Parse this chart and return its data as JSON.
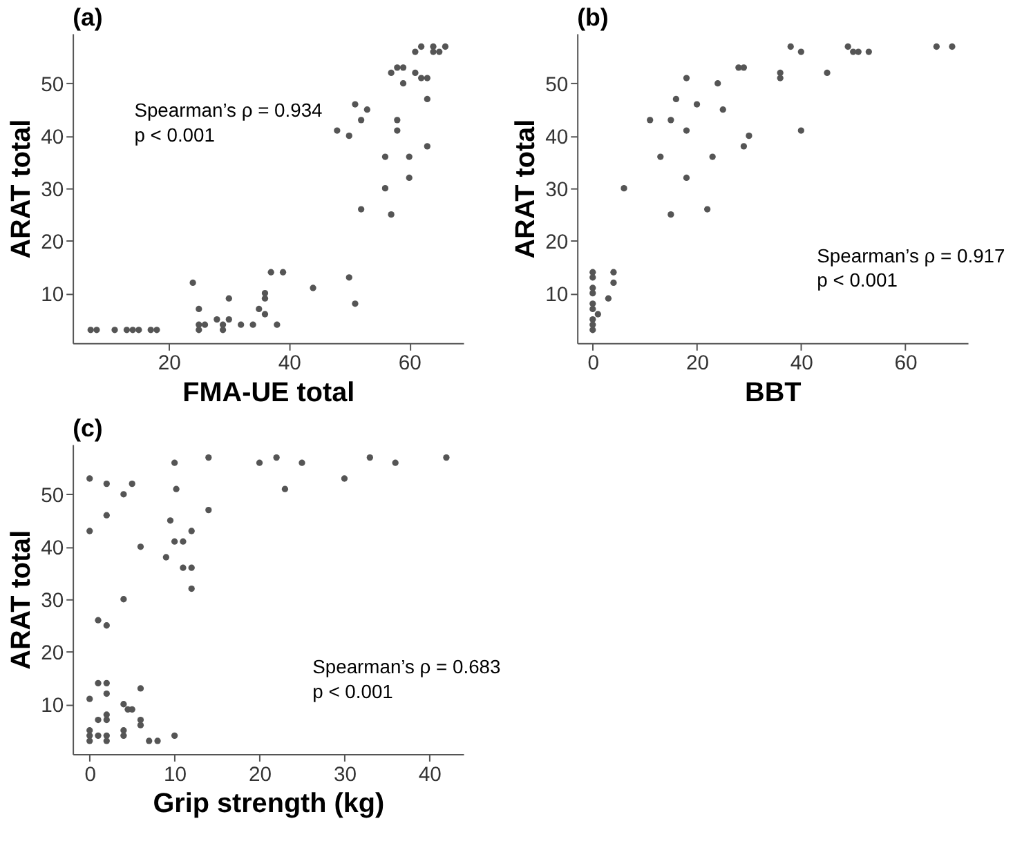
{
  "chart_data": [
    {
      "type": "scatter",
      "title": "(a)",
      "xlabel": "FMA-UE total",
      "ylabel": "ARAT total",
      "annotations": [
        "Spearman’s ρ = 0.934\np < 0.001"
      ],
      "xlim": [
        4,
        69
      ],
      "ylim": [
        0.5,
        59.5
      ],
      "xticks": [
        20,
        40,
        60
      ],
      "yticks": [
        10,
        20,
        30,
        40,
        50
      ],
      "grid": false,
      "marker": "circle",
      "series": [
        {
          "color": "#555555",
          "x": [
            7,
            8,
            11,
            13,
            14,
            15,
            17,
            18,
            24,
            25,
            25,
            25,
            26,
            28,
            29,
            29,
            30,
            30,
            32,
            34,
            35,
            36,
            36,
            36,
            37,
            38,
            39,
            44,
            48,
            50,
            50,
            51,
            51,
            52,
            52,
            53,
            56,
            56,
            57,
            57,
            58,
            58,
            58,
            59,
            59,
            60,
            60,
            61,
            61,
            62,
            62,
            63,
            63,
            63,
            64,
            64,
            65,
            66
          ],
          "values": [
            3,
            3,
            3,
            3,
            3,
            3,
            3,
            3,
            12,
            7,
            4,
            3,
            4,
            5,
            4,
            3,
            9,
            5,
            4,
            4,
            7,
            10,
            9,
            6,
            14,
            4,
            14,
            11,
            41,
            40,
            13,
            46,
            8,
            43,
            26,
            45,
            36,
            30,
            52,
            25,
            53,
            43,
            41,
            53,
            50,
            36,
            32,
            56,
            52,
            57,
            51,
            51,
            47,
            38,
            57,
            56,
            56,
            57
          ]
        }
      ]
    },
    {
      "type": "scatter",
      "title": "(b)",
      "xlabel": "BBT",
      "ylabel": "ARAT total",
      "annotations": [
        "Spearman’s ρ = 0.917\np < 0.001"
      ],
      "xlim": [
        -3,
        72
      ],
      "ylim": [
        0.5,
        59.5
      ],
      "xticks": [
        0,
        20,
        40,
        60
      ],
      "yticks": [
        10,
        20,
        30,
        40,
        50
      ],
      "grid": false,
      "marker": "circle",
      "series": [
        {
          "color": "#555555",
          "x": [
            0,
            0,
            0,
            0,
            0,
            0,
            0,
            0,
            0,
            1,
            3,
            4,
            4,
            6,
            11,
            13,
            15,
            15,
            16,
            18,
            18,
            18,
            20,
            22,
            23,
            24,
            25,
            28,
            29,
            29,
            30,
            36,
            36,
            38,
            40,
            40,
            45,
            49,
            50,
            51,
            53,
            66,
            69
          ],
          "values": [
            14,
            13,
            11,
            10,
            8,
            7,
            5,
            4,
            3,
            6,
            9,
            14,
            12,
            30,
            43,
            36,
            43,
            25,
            47,
            51,
            41,
            32,
            46,
            26,
            36,
            50,
            45,
            53,
            53,
            38,
            40,
            52,
            51,
            57,
            56,
            41,
            52,
            57,
            56,
            56,
            56,
            57,
            57
          ]
        }
      ]
    },
    {
      "type": "scatter",
      "title": "(c)",
      "xlabel": "Grip strength (kg)",
      "ylabel": "ARAT total",
      "annotations": [
        "Spearman’s ρ = 0.683\np < 0.001"
      ],
      "xlim": [
        -2,
        44
      ],
      "ylim": [
        0.5,
        59.5
      ],
      "xticks": [
        0,
        10,
        20,
        30,
        40
      ],
      "yticks": [
        10,
        20,
        30,
        40,
        50
      ],
      "grid": false,
      "marker": "circle",
      "series": [
        {
          "color": "#555555",
          "x": [
            0,
            0,
            0,
            0,
            0,
            0,
            1,
            1,
            1,
            1,
            2,
            2,
            2,
            2,
            2,
            2,
            2,
            2,
            2,
            4,
            4,
            4,
            4,
            4,
            4.5,
            5,
            5,
            6,
            6,
            6,
            6,
            7,
            8,
            9,
            9.5,
            10,
            10,
            10,
            10.2,
            11,
            11,
            12,
            12,
            12,
            14,
            14,
            20,
            22,
            23,
            25,
            30,
            33,
            36,
            42
          ],
          "values": [
            53,
            43,
            11,
            5,
            4,
            3,
            26,
            14,
            7,
            4,
            52,
            46,
            25,
            14,
            12,
            8,
            7,
            4,
            3,
            50,
            30,
            10,
            5,
            4,
            9,
            9,
            52,
            40,
            13,
            7,
            6,
            3,
            3,
            38,
            45,
            56,
            41,
            4,
            51,
            41,
            36,
            43,
            36,
            32,
            57,
            47,
            56,
            57,
            51,
            56,
            53,
            57,
            56,
            57
          ]
        }
      ]
    }
  ]
}
